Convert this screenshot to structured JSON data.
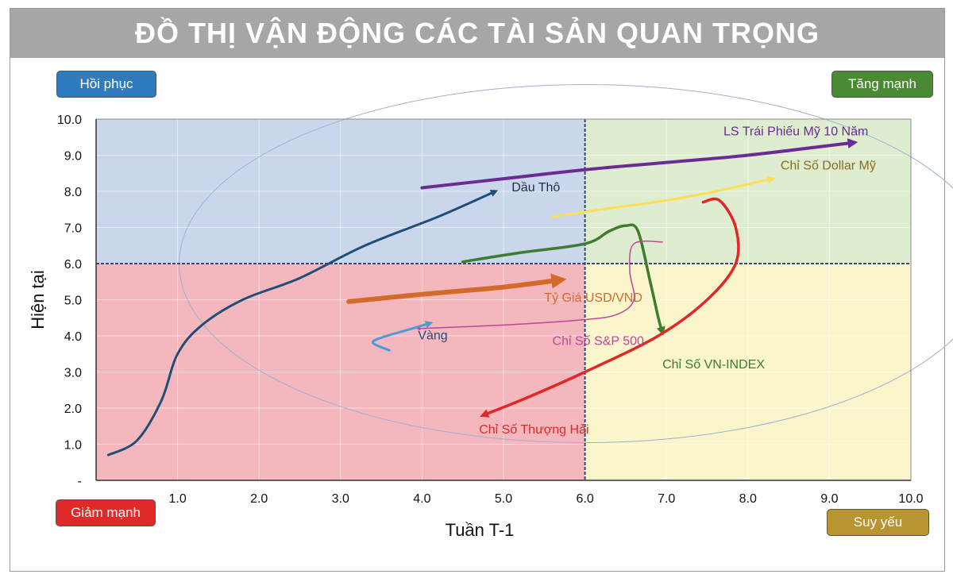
{
  "title": "ĐỒ THỊ VẬN ĐỘNG CÁC TÀI SẢN QUAN TRỌNG",
  "quadrants": {
    "top_left": {
      "label": "Hồi phục",
      "color": "#2f7bbf"
    },
    "top_right": {
      "label": "Tăng mạnh",
      "color": "#4b8a35"
    },
    "bottom_left": {
      "label": "Giảm mạnh",
      "color": "#e02a2a"
    },
    "bottom_right": {
      "label": "Suy yếu",
      "color": "#b8952e"
    }
  },
  "chart_data": {
    "type": "line",
    "xlabel": "Tuần T-1",
    "ylabel": "Hiện tại",
    "xlim": [
      0,
      10
    ],
    "ylim": [
      0,
      10
    ],
    "x_ticks": [
      "1.0",
      "2.0",
      "3.0",
      "4.0",
      "5.0",
      "6.0",
      "7.0",
      "8.0",
      "9.0",
      "10.0"
    ],
    "y_ticks": [
      "-",
      "1.0",
      "2.0",
      "3.0",
      "4.0",
      "5.0",
      "6.0",
      "7.0",
      "8.0",
      "9.0",
      "10.0"
    ],
    "center": [
      6,
      6
    ],
    "grid": true,
    "quadrant_fills": {
      "top_left": "#c9d6ec",
      "top_right": "#deedd0",
      "bottom_left": "#f4b7bd",
      "bottom_right": "#fbf5cc"
    },
    "series": [
      {
        "name": "LS Trái Phiếu Mỹ 10 Năm",
        "color": "#6a2b93",
        "width": 4,
        "points": [
          [
            4.0,
            8.1
          ],
          [
            5.0,
            8.35
          ],
          [
            6.0,
            8.6
          ],
          [
            7.0,
            8.8
          ],
          [
            8.0,
            9.0
          ],
          [
            9.3,
            9.35
          ]
        ],
        "label_pos": [
          7.7,
          9.55
        ]
      },
      {
        "name": "Chỉ Số Dollar Mỹ",
        "color": "#ffdd55",
        "width": 3,
        "points": [
          [
            5.6,
            7.3
          ],
          [
            6.2,
            7.5
          ],
          [
            7.0,
            7.75
          ],
          [
            7.6,
            8.0
          ],
          [
            8.3,
            8.35
          ]
        ],
        "label_pos": [
          8.4,
          8.6
        ]
      },
      {
        "name": "Dầu Thô",
        "color": "#1f4e79",
        "width": 3,
        "points": [
          [
            0.15,
            0.7
          ],
          [
            0.5,
            1.1
          ],
          [
            0.8,
            2.2
          ],
          [
            1.0,
            3.5
          ],
          [
            1.3,
            4.3
          ],
          [
            1.8,
            5.0
          ],
          [
            2.5,
            5.6
          ],
          [
            3.3,
            6.5
          ],
          [
            4.2,
            7.3
          ],
          [
            4.9,
            8.0
          ]
        ],
        "label_pos": [
          5.1,
          8.0
        ]
      },
      {
        "name": "Chỉ Số VN-INDEX",
        "color": "#3e7d2d",
        "width": 3.5,
        "points": [
          [
            4.5,
            6.05
          ],
          [
            5.2,
            6.3
          ],
          [
            6.0,
            6.55
          ],
          [
            6.3,
            6.9
          ],
          [
            6.5,
            7.05
          ],
          [
            6.65,
            6.9
          ],
          [
            6.8,
            5.5
          ],
          [
            6.9,
            4.5
          ],
          [
            6.95,
            4.1
          ]
        ],
        "label_pos": [
          6.95,
          3.1
        ]
      },
      {
        "name": "Chỉ Số S&P 500",
        "color": "#c2459c",
        "width": 1.5,
        "points": [
          [
            6.95,
            6.6
          ],
          [
            6.6,
            6.55
          ],
          [
            6.55,
            5.8
          ],
          [
            6.6,
            5.0
          ],
          [
            6.4,
            4.6
          ],
          [
            6.0,
            4.45
          ],
          [
            5.0,
            4.3
          ],
          [
            3.95,
            4.2
          ]
        ],
        "label_pos": [
          5.6,
          3.75
        ]
      },
      {
        "name": "Tỷ Giá USD/VND",
        "color": "#d46a2a",
        "width": 6,
        "points": [
          [
            3.1,
            4.95
          ],
          [
            4.0,
            5.15
          ],
          [
            5.0,
            5.35
          ],
          [
            5.7,
            5.55
          ]
        ],
        "label_pos": [
          5.5,
          4.95
        ]
      },
      {
        "name": "Vàng",
        "color": "#4a9cd6",
        "width": 3,
        "points": [
          [
            3.6,
            3.6
          ],
          [
            3.4,
            3.8
          ],
          [
            3.5,
            3.95
          ],
          [
            3.8,
            4.15
          ],
          [
            4.1,
            4.35
          ]
        ],
        "label_pos": [
          3.95,
          3.9
        ]
      },
      {
        "name": "Chỉ Số Thượng Hải",
        "color": "#e12727",
        "width": 3.5,
        "points": [
          [
            7.45,
            7.7
          ],
          [
            7.65,
            7.75
          ],
          [
            7.85,
            7.0
          ],
          [
            7.85,
            6.0
          ],
          [
            7.5,
            5.0
          ],
          [
            6.9,
            4.0
          ],
          [
            6.0,
            3.0
          ],
          [
            5.3,
            2.3
          ],
          [
            4.75,
            1.8
          ]
        ],
        "label_pos": [
          4.7,
          1.3
        ]
      }
    ]
  }
}
